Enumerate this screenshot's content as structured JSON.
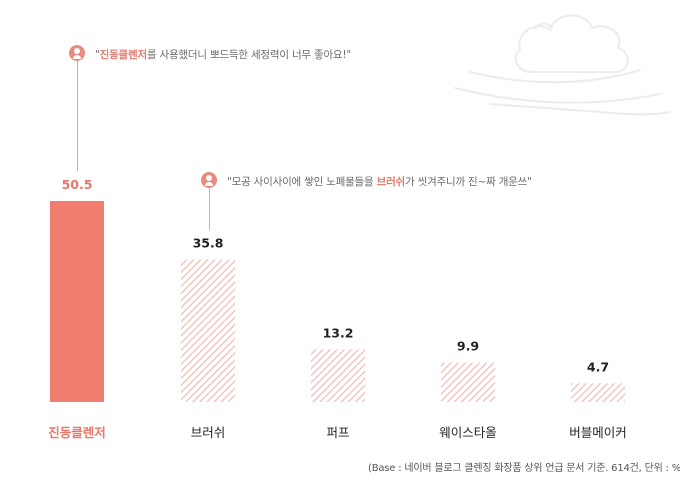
{
  "chart_data": {
    "type": "bar",
    "categories": [
      "진동클렌저",
      "브러쉬",
      "퍼프",
      "웨이스타올",
      "버블메이커"
    ],
    "values": [
      50.5,
      35.8,
      13.2,
      9.9,
      4.7
    ],
    "highlight_index": 0,
    "colors": {
      "highlight_bar": "#f07d70",
      "highlight_text": "#e8776b",
      "hatch": "#f2b4ab",
      "label": "#222222",
      "baseline": "#bbbbbb"
    },
    "annotations": [
      {
        "target": "진동클렌저",
        "prefix": "\"",
        "highlight": "진동클렌저",
        "suffix": "를 사용했더니 뽀드득한 세정력이 너무 좋아요!\""
      },
      {
        "target": "브러쉬",
        "prefix": "\"모공 사이사이에 쌓인 노폐물들을 ",
        "highlight": "브러쉬",
        "suffix": "가 씻겨주니까 진~짜 개운쓰\""
      }
    ],
    "source_note": "(Base : 네이버 블로그 클렌징 화장품 상위 언급 문서 기준. 614건, 단위 : %)",
    "title": "",
    "xlabel": "",
    "ylabel": ""
  }
}
